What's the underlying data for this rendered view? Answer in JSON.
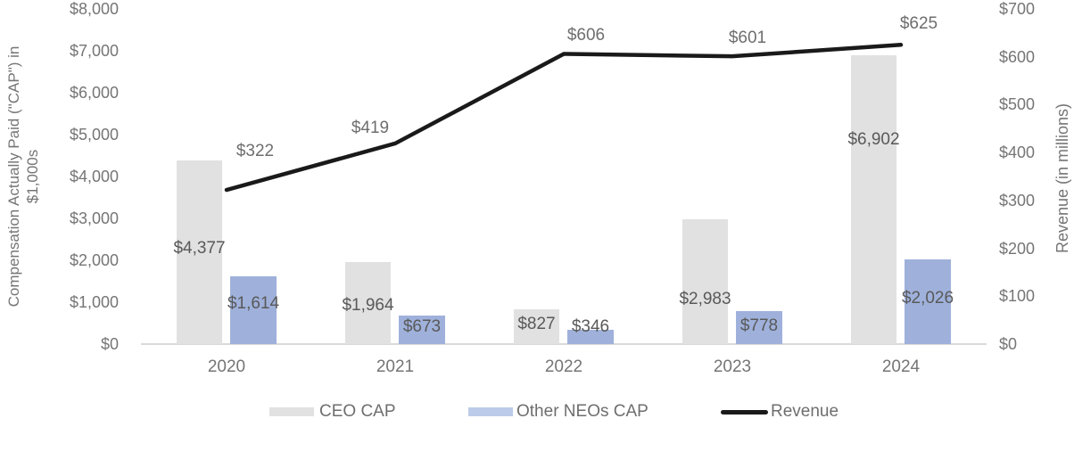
{
  "chart_data": {
    "type": "bar",
    "subtype": "grouped-bars-with-line-overlay",
    "title": "",
    "categories": [
      "2020",
      "2021",
      "2022",
      "2023",
      "2024"
    ],
    "series": [
      {
        "name": "CEO CAP",
        "chart": "bar",
        "axis": "left",
        "color": "#e1e1e1",
        "values": [
          4377,
          1964,
          827,
          2983,
          6902
        ],
        "labels": [
          "$4,377",
          "$1,964",
          "$827",
          "$2,983",
          "$6,902"
        ]
      },
      {
        "name": "Other NEOs CAP",
        "chart": "bar",
        "axis": "left",
        "color": "#9fb1db",
        "values": [
          1614,
          673,
          346,
          778,
          2026
        ],
        "labels": [
          "$1,614",
          "$673",
          "$346",
          "$778",
          "$2,026"
        ]
      },
      {
        "name": "Revenue",
        "chart": "line",
        "axis": "right",
        "color": "#1a1a1a",
        "values": [
          322,
          419,
          606,
          601,
          625
        ],
        "labels": [
          "$322",
          "$419",
          "$606",
          "$601",
          "$625"
        ]
      }
    ],
    "left_axis": {
      "title": "Compensation Actually Paid (\"CAP\") in $1,000s",
      "title_lines": [
        "Compensation Actually Paid (\"CAP\") in",
        "$1,000s"
      ],
      "ticks": [
        "$8,000",
        "$7,000",
        "$6,000",
        "$5,000",
        "$4,000",
        "$3,000",
        "$2,000",
        "$1,000",
        "$0"
      ],
      "range": [
        0,
        8000
      ],
      "tick_step": 1000
    },
    "right_axis": {
      "title": "Revenue (in millions)",
      "ticks": [
        "$700",
        "$600",
        "$500",
        "$400",
        "$300",
        "$200",
        "$100",
        "$0"
      ],
      "range": [
        0,
        700
      ],
      "tick_step": 100
    },
    "legend": {
      "position": "bottom",
      "items": [
        {
          "label": "CEO CAP",
          "color": "#e1e1e1"
        },
        {
          "label": "Other NEOs CAP",
          "color": "#bccbe9"
        },
        {
          "label": "Revenue",
          "color": "#1a1a1a"
        }
      ]
    },
    "grid": "off",
    "background_color": "#ffffff",
    "data_label_color": "#595959",
    "tick_label_color": "#757575",
    "axis_line_color": "#d9d9d9"
  }
}
